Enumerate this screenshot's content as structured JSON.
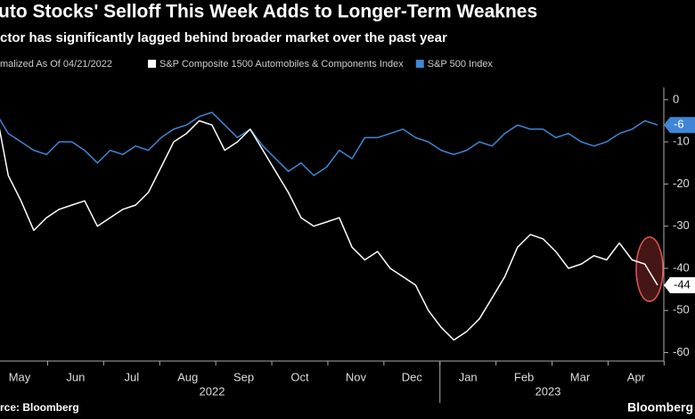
{
  "chart_data": {
    "type": "line",
    "title": "uto Stocks' Selloff This Week Adds to Longer-Term Weaknes",
    "subtitle": "ctor has significantly lagged behind broader market over the past year",
    "legend_note": "malized As Of 04/21/2022",
    "source": "rce: Bloomberg",
    "brand": "Bloomberg",
    "x_labels": [
      "May",
      "Jun",
      "Jul",
      "Aug",
      "Sep",
      "Oct",
      "Nov",
      "Dec",
      "Jan",
      "Feb",
      "Mar",
      "Apr"
    ],
    "year_labels": [
      "2022",
      "2023"
    ],
    "ylim": [
      -62,
      2.5
    ],
    "yticks": [
      0,
      -10,
      -20,
      -30,
      -40,
      -50,
      -60
    ],
    "series": [
      {
        "name": "S&P Composite 1500 Automobiles & Components Index",
        "color": "#ffffff",
        "values": [
          -2,
          -18,
          -24,
          -31,
          -28,
          -26,
          -25,
          -24,
          -30,
          -28,
          -26,
          -25,
          -22,
          -16,
          -10,
          -8,
          -5,
          -6,
          -12,
          -10,
          -7,
          -12,
          -17,
          -22,
          -28,
          -30,
          -29,
          -28,
          -35,
          -38,
          -36,
          -40,
          -42,
          -44,
          -50,
          -54,
          -57,
          -55,
          -52,
          -47,
          -42,
          -35,
          -32,
          -33,
          -36,
          -40,
          -39,
          -37,
          -38,
          -34,
          -38,
          -39,
          -44
        ]
      },
      {
        "name": "S&P 500 Index",
        "color": "#3f86d6",
        "values": [
          -3,
          -8,
          -10,
          -12,
          -13,
          -10,
          -10,
          -12,
          -15,
          -12,
          -13,
          -11,
          -12,
          -9,
          -7,
          -6,
          -4,
          -3,
          -6,
          -9,
          -7,
          -11,
          -14,
          -17,
          -15,
          -18,
          -16,
          -12,
          -14,
          -9,
          -9,
          -8,
          -7,
          -9,
          -10,
          -12,
          -13,
          -12,
          -10,
          -11,
          -8,
          -6,
          -7,
          -7,
          -9,
          -8,
          -10,
          -11,
          -10,
          -8,
          -7,
          -5,
          -6
        ]
      }
    ]
  }
}
